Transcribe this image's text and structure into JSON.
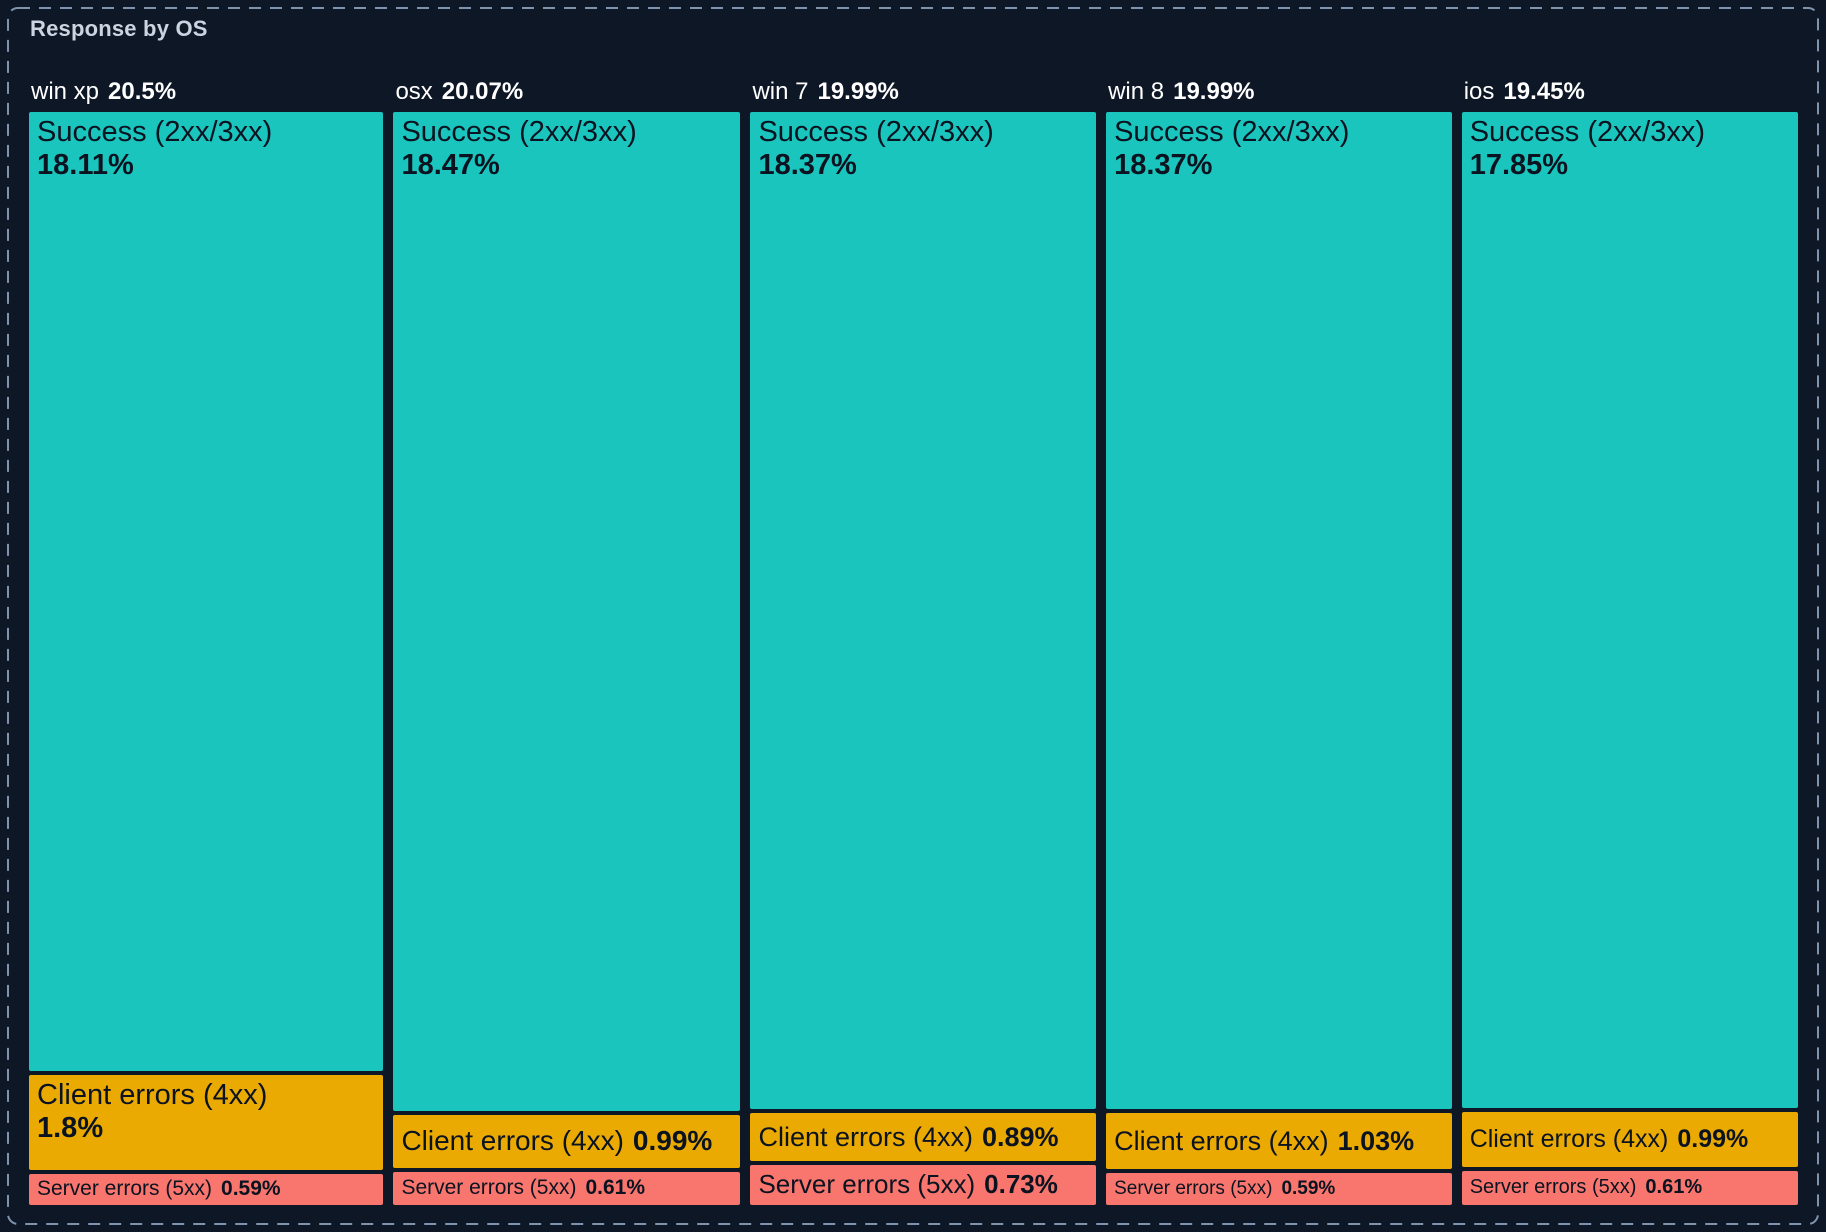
{
  "panel": {
    "title": "Response by OS"
  },
  "colors": {
    "background": "#0e1726",
    "panel_border": "#8093ad",
    "title_text": "#cbd4e0",
    "header_text": "#ffffff",
    "cell_text": "#0b1320",
    "success": "#1ac5be",
    "client": "#ebaa02",
    "server": "#f8766d"
  },
  "chart_data": {
    "type": "treemap",
    "title": "Response by OS",
    "value_unit": "%",
    "layout": "columns-by-group, vertical slices per category, areas proportional to percent",
    "categories_legend": [
      "Success (2xx/3xx)",
      "Client errors (4xx)",
      "Server errors (5xx)"
    ],
    "groups": [
      {
        "name": "win xp",
        "total": 20.5,
        "total_label": "20.5%",
        "segments": [
          {
            "category": "success",
            "label": "Success (2xx/3xx)",
            "value": 18.11,
            "value_label": "18.11%",
            "text_layout": "stacked",
            "font_px": 29
          },
          {
            "category": "client",
            "label": "Client errors (4xx)",
            "value": 1.8,
            "value_label": "1.8%",
            "text_layout": "stacked",
            "font_px": 29
          },
          {
            "category": "server",
            "label": "Server errors (5xx)",
            "value": 0.59,
            "value_label": "0.59%",
            "text_layout": "inline",
            "font_px": 21
          }
        ]
      },
      {
        "name": "osx",
        "total": 20.07,
        "total_label": "20.07%",
        "segments": [
          {
            "category": "success",
            "label": "Success (2xx/3xx)",
            "value": 18.47,
            "value_label": "18.47%",
            "text_layout": "stacked",
            "font_px": 29
          },
          {
            "category": "client",
            "label": "Client errors (4xx)",
            "value": 0.99,
            "value_label": "0.99%",
            "text_layout": "inline",
            "font_px": 28
          },
          {
            "category": "server",
            "label": "Server errors (5xx)",
            "value": 0.61,
            "value_label": "0.61%",
            "text_layout": "inline",
            "font_px": 21
          }
        ]
      },
      {
        "name": "win 7",
        "total": 19.99,
        "total_label": "19.99%",
        "segments": [
          {
            "category": "success",
            "label": "Success (2xx/3xx)",
            "value": 18.37,
            "value_label": "18.37%",
            "text_layout": "stacked",
            "font_px": 29
          },
          {
            "category": "client",
            "label": "Client errors (4xx)",
            "value": 0.89,
            "value_label": "0.89%",
            "text_layout": "inline",
            "font_px": 27
          },
          {
            "category": "server",
            "label": "Server errors (5xx)",
            "value": 0.73,
            "value_label": "0.73%",
            "text_layout": "inline",
            "font_px": 26
          }
        ]
      },
      {
        "name": "win 8",
        "total": 19.99,
        "total_label": "19.99%",
        "segments": [
          {
            "category": "success",
            "label": "Success (2xx/3xx)",
            "value": 18.37,
            "value_label": "18.37%",
            "text_layout": "stacked",
            "font_px": 29
          },
          {
            "category": "client",
            "label": "Client errors (4xx)",
            "value": 1.03,
            "value_label": "1.03%",
            "text_layout": "inline",
            "font_px": 27
          },
          {
            "category": "server",
            "label": "Server errors (5xx)",
            "value": 0.59,
            "value_label": "0.59%",
            "text_layout": "inline",
            "font_px": 19
          }
        ]
      },
      {
        "name": "ios",
        "total": 19.45,
        "total_label": "19.45%",
        "segments": [
          {
            "category": "success",
            "label": "Success (2xx/3xx)",
            "value": 17.85,
            "value_label": "17.85%",
            "text_layout": "stacked",
            "font_px": 29
          },
          {
            "category": "client",
            "label": "Client errors (4xx)",
            "value": 0.99,
            "value_label": "0.99%",
            "text_layout": "inline",
            "font_px": 25
          },
          {
            "category": "server",
            "label": "Server errors (5xx)",
            "value": 0.61,
            "value_label": "0.61%",
            "text_layout": "inline",
            "font_px": 20
          }
        ]
      }
    ]
  }
}
